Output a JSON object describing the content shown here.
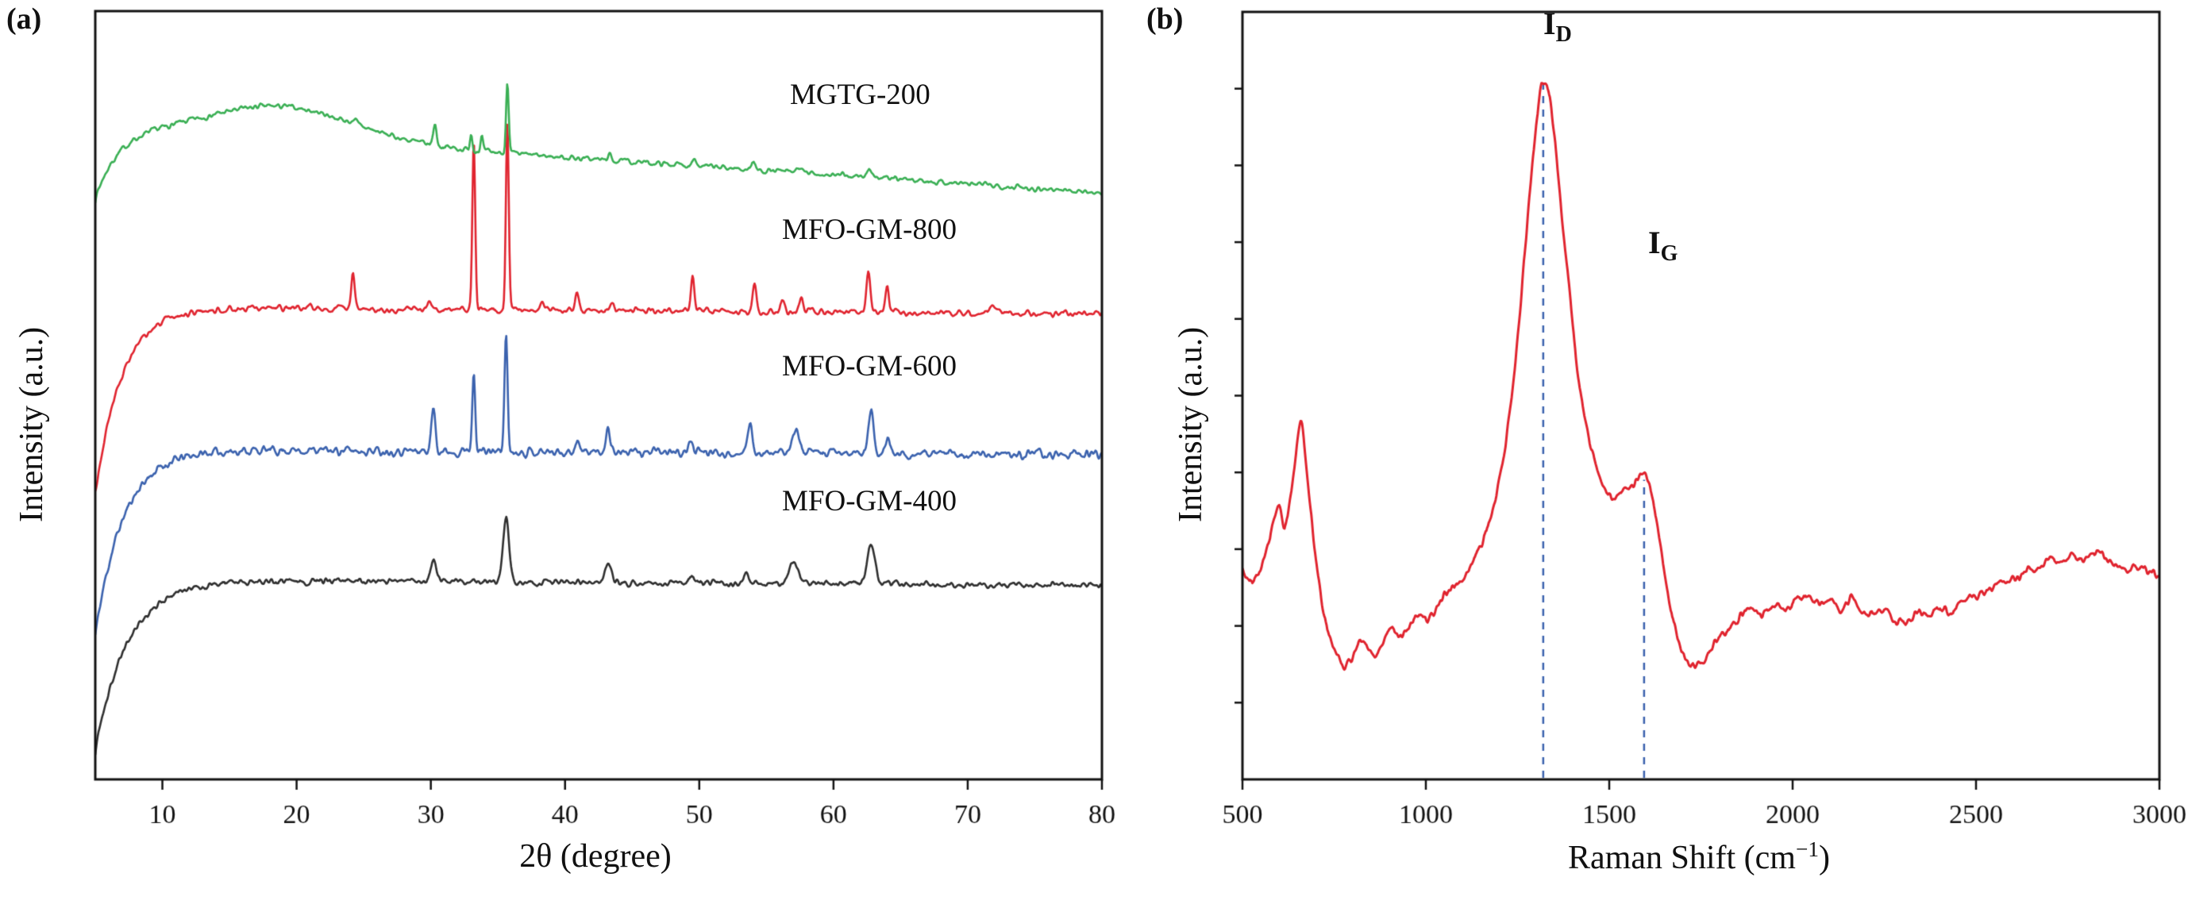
{
  "panels": {
    "a": {
      "tag": "(a)"
    },
    "b": {
      "tag": "(b)"
    }
  },
  "chart_data": [
    {
      "type": "line",
      "panel": "a",
      "title": "",
      "xlabel": "2θ (degree)",
      "ylabel": "Intensity (a.u.)",
      "xlim": [
        5,
        80
      ],
      "ylim": [
        0,
        10
      ],
      "xticks": [
        10,
        20,
        30,
        40,
        50,
        60,
        70,
        80
      ],
      "grid": false,
      "legend_position": "inline-right",
      "series": [
        {
          "name": "MGTG-200",
          "color": "#3aaf54",
          "baseline": {
            "start": 7.55,
            "plateau": 8.5,
            "rise": 1.8,
            "slope": 0.0115
          },
          "hump": {
            "center": 19,
            "width": 7.5,
            "amp": 0.42
          },
          "noise": 0.03,
          "seed": 7,
          "peaks": [
            [
              24.3,
              0.07,
              0.2
            ],
            [
              30.3,
              0.28,
              0.18
            ],
            [
              33.0,
              0.22,
              0.13
            ],
            [
              33.8,
              0.18,
              0.12
            ],
            [
              35.7,
              0.9,
              0.14
            ],
            [
              43.3,
              0.06,
              0.2
            ],
            [
              49.6,
              0.12,
              0.2
            ],
            [
              54.0,
              0.1,
              0.2
            ],
            [
              57.4,
              0.07,
              0.25
            ],
            [
              62.7,
              0.12,
              0.25
            ]
          ]
        },
        {
          "name": "MFO-GM-800",
          "color": "#e0242f",
          "baseline": {
            "start": 3.72,
            "plateau": 6.15,
            "rise": 2.0,
            "slope": 0.0012
          },
          "noise": 0.035,
          "seed": 3,
          "peaks": [
            [
              24.2,
              0.5,
              0.17
            ],
            [
              29.9,
              0.12,
              0.18
            ],
            [
              33.2,
              2.2,
              0.15
            ],
            [
              35.7,
              2.42,
              0.15
            ],
            [
              38.3,
              0.08,
              0.2
            ],
            [
              40.9,
              0.22,
              0.18
            ],
            [
              43.5,
              0.12,
              0.2
            ],
            [
              49.5,
              0.45,
              0.18
            ],
            [
              54.1,
              0.4,
              0.2
            ],
            [
              56.2,
              0.15,
              0.2
            ],
            [
              57.6,
              0.2,
              0.2
            ],
            [
              62.6,
              0.5,
              0.2
            ],
            [
              64.0,
              0.32,
              0.18
            ],
            [
              71.9,
              0.1,
              0.25
            ]
          ]
        },
        {
          "name": "MFO-GM-600",
          "color": "#3b62ae",
          "baseline": {
            "start": 1.88,
            "plateau": 4.3,
            "rise": 2.1,
            "slope": 0.001
          },
          "noise": 0.05,
          "seed": 11,
          "peaks": [
            [
              30.2,
              0.55,
              0.22
            ],
            [
              33.2,
              1.0,
              0.16
            ],
            [
              35.6,
              1.55,
              0.16
            ],
            [
              40.9,
              0.15,
              0.2
            ],
            [
              43.2,
              0.3,
              0.25
            ],
            [
              49.4,
              0.18,
              0.2
            ],
            [
              53.8,
              0.4,
              0.22
            ],
            [
              57.2,
              0.35,
              0.3
            ],
            [
              62.8,
              0.55,
              0.28
            ],
            [
              64.1,
              0.2,
              0.2
            ]
          ]
        },
        {
          "name": "MFO-GM-400",
          "color": "#2f2f2f",
          "baseline": {
            "start": 0.38,
            "plateau": 2.6,
            "rise": 2.4,
            "slope": 0.001
          },
          "noise": 0.035,
          "seed": 19,
          "peaks": [
            [
              30.2,
              0.3,
              0.3
            ],
            [
              35.6,
              0.85,
              0.3
            ],
            [
              43.2,
              0.22,
              0.35
            ],
            [
              49.5,
              0.1,
              0.25
            ],
            [
              53.5,
              0.12,
              0.3
            ],
            [
              57.0,
              0.28,
              0.45
            ],
            [
              62.8,
              0.55,
              0.4
            ]
          ]
        }
      ]
    },
    {
      "type": "line",
      "panel": "b",
      "title": "",
      "xlabel_parts": {
        "main": "Raman Shift (cm",
        "sup": "−1",
        "end": ")"
      },
      "ylabel": "Intensity (a.u.)",
      "xlim": [
        500,
        3000
      ],
      "ylim": [
        0,
        1.05
      ],
      "xticks": [
        500,
        1000,
        1500,
        2000,
        2500,
        3000
      ],
      "grid": false,
      "color": "#e0232e",
      "noise": 0.005,
      "seed": 5,
      "dash_color": "#3b62ae",
      "dashed_lines": [
        {
          "x": 1320,
          "top": 0.95
        },
        {
          "x": 1595,
          "top": 0.41
        }
      ],
      "annotations": [
        {
          "text": "I",
          "sub": "D"
        },
        {
          "text": "I",
          "sub": "G"
        }
      ],
      "points": [
        [
          500,
          0.285
        ],
        [
          520,
          0.27
        ],
        [
          545,
          0.285
        ],
        [
          575,
          0.33
        ],
        [
          600,
          0.375
        ],
        [
          615,
          0.345
        ],
        [
          640,
          0.42
        ],
        [
          660,
          0.485
        ],
        [
          680,
          0.4
        ],
        [
          700,
          0.3
        ],
        [
          725,
          0.22
        ],
        [
          750,
          0.18
        ],
        [
          780,
          0.155
        ],
        [
          805,
          0.175
        ],
        [
          830,
          0.19
        ],
        [
          855,
          0.17
        ],
        [
          880,
          0.185
        ],
        [
          905,
          0.21
        ],
        [
          930,
          0.195
        ],
        [
          955,
          0.21
        ],
        [
          980,
          0.225
        ],
        [
          1010,
          0.22
        ],
        [
          1040,
          0.245
        ],
        [
          1070,
          0.26
        ],
        [
          1100,
          0.275
        ],
        [
          1130,
          0.3
        ],
        [
          1160,
          0.335
        ],
        [
          1190,
          0.385
        ],
        [
          1220,
          0.47
        ],
        [
          1250,
          0.6
        ],
        [
          1280,
          0.78
        ],
        [
          1305,
          0.91
        ],
        [
          1320,
          0.955
        ],
        [
          1340,
          0.925
        ],
        [
          1360,
          0.83
        ],
        [
          1385,
          0.7
        ],
        [
          1410,
          0.575
        ],
        [
          1435,
          0.49
        ],
        [
          1460,
          0.435
        ],
        [
          1485,
          0.4
        ],
        [
          1510,
          0.385
        ],
        [
          1535,
          0.39
        ],
        [
          1560,
          0.4
        ],
        [
          1580,
          0.415
        ],
        [
          1595,
          0.42
        ],
        [
          1615,
          0.395
        ],
        [
          1635,
          0.335
        ],
        [
          1655,
          0.27
        ],
        [
          1675,
          0.215
        ],
        [
          1700,
          0.175
        ],
        [
          1725,
          0.155
        ],
        [
          1750,
          0.16
        ],
        [
          1775,
          0.175
        ],
        [
          1800,
          0.195
        ],
        [
          1830,
          0.21
        ],
        [
          1860,
          0.225
        ],
        [
          1890,
          0.235
        ],
        [
          1920,
          0.225
        ],
        [
          1950,
          0.24
        ],
        [
          1980,
          0.23
        ],
        [
          2010,
          0.245
        ],
        [
          2040,
          0.25
        ],
        [
          2070,
          0.24
        ],
        [
          2100,
          0.25
        ],
        [
          2130,
          0.235
        ],
        [
          2160,
          0.245
        ],
        [
          2190,
          0.23
        ],
        [
          2220,
          0.225
        ],
        [
          2250,
          0.235
        ],
        [
          2280,
          0.22
        ],
        [
          2310,
          0.215
        ],
        [
          2340,
          0.23
        ],
        [
          2370,
          0.225
        ],
        [
          2400,
          0.235
        ],
        [
          2430,
          0.23
        ],
        [
          2460,
          0.245
        ],
        [
          2490,
          0.25
        ],
        [
          2520,
          0.255
        ],
        [
          2550,
          0.265
        ],
        [
          2580,
          0.27
        ],
        [
          2610,
          0.275
        ],
        [
          2640,
          0.285
        ],
        [
          2670,
          0.29
        ],
        [
          2700,
          0.3
        ],
        [
          2730,
          0.295
        ],
        [
          2760,
          0.305
        ],
        [
          2790,
          0.3
        ],
        [
          2820,
          0.31
        ],
        [
          2850,
          0.305
        ],
        [
          2880,
          0.295
        ],
        [
          2910,
          0.285
        ],
        [
          2940,
          0.29
        ],
        [
          2970,
          0.285
        ],
        [
          3000,
          0.28
        ]
      ]
    }
  ]
}
